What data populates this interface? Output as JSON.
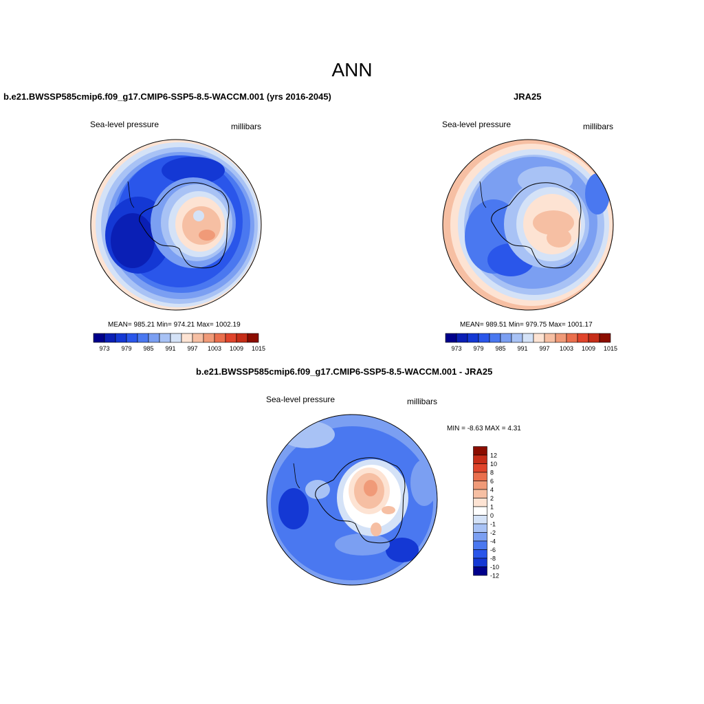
{
  "figure": {
    "season": "ANN"
  },
  "panels": [
    {
      "title": "b.e21.BWSSP585cmip6.f09_g17.CMIP6-SSP5-8.5-WACCM.001 (yrs 2016-2045)",
      "variable": "Sea-level pressure",
      "units": "millibars",
      "stats": "MEAN= 985.21  Min= 974.21  Max= 1002.19"
    },
    {
      "title": "JRA25",
      "variable": "Sea-level pressure",
      "units": "millibars",
      "stats": "MEAN= 989.51  Min= 979.75  Max= 1001.17"
    },
    {
      "title": "b.e21.BWSSP585cmip6.f09_g17.CMIP6-SSP5-8.5-WACCM.001 - JRA25",
      "variable": "Sea-level pressure",
      "units": "millibars",
      "stats": "MIN =  -8.63 MAX =   4.31"
    }
  ],
  "field_colorbar": {
    "colors": [
      "#00008b",
      "#0a1fb5",
      "#1438d4",
      "#2a56ea",
      "#4a78f0",
      "#7b9ff2",
      "#a8c2f5",
      "#d4e2f7",
      "#fde3d3",
      "#f6bfa3",
      "#f09a78",
      "#ea6f4d",
      "#e0442b",
      "#c62d18",
      "#8b0d00"
    ],
    "tick_labels": [
      "973",
      "979",
      "985",
      "991",
      "997",
      "1003",
      "1009",
      "1015"
    ]
  },
  "diff_colorbar": {
    "colors": [
      "#8b0d00",
      "#c62d18",
      "#e0442b",
      "#ea6f4d",
      "#f09a78",
      "#f6bfa3",
      "#fde3d3",
      "#ffffff",
      "#d4e2f7",
      "#a8c2f5",
      "#7b9ff2",
      "#4a78f0",
      "#2a56ea",
      "#1438d4",
      "#00008b"
    ],
    "tick_labels": [
      "12",
      "10",
      "8",
      "6",
      "4",
      "2",
      "1",
      "0",
      "-1",
      "-2",
      "-4",
      "-6",
      "-8",
      "-10",
      "-12"
    ]
  }
}
